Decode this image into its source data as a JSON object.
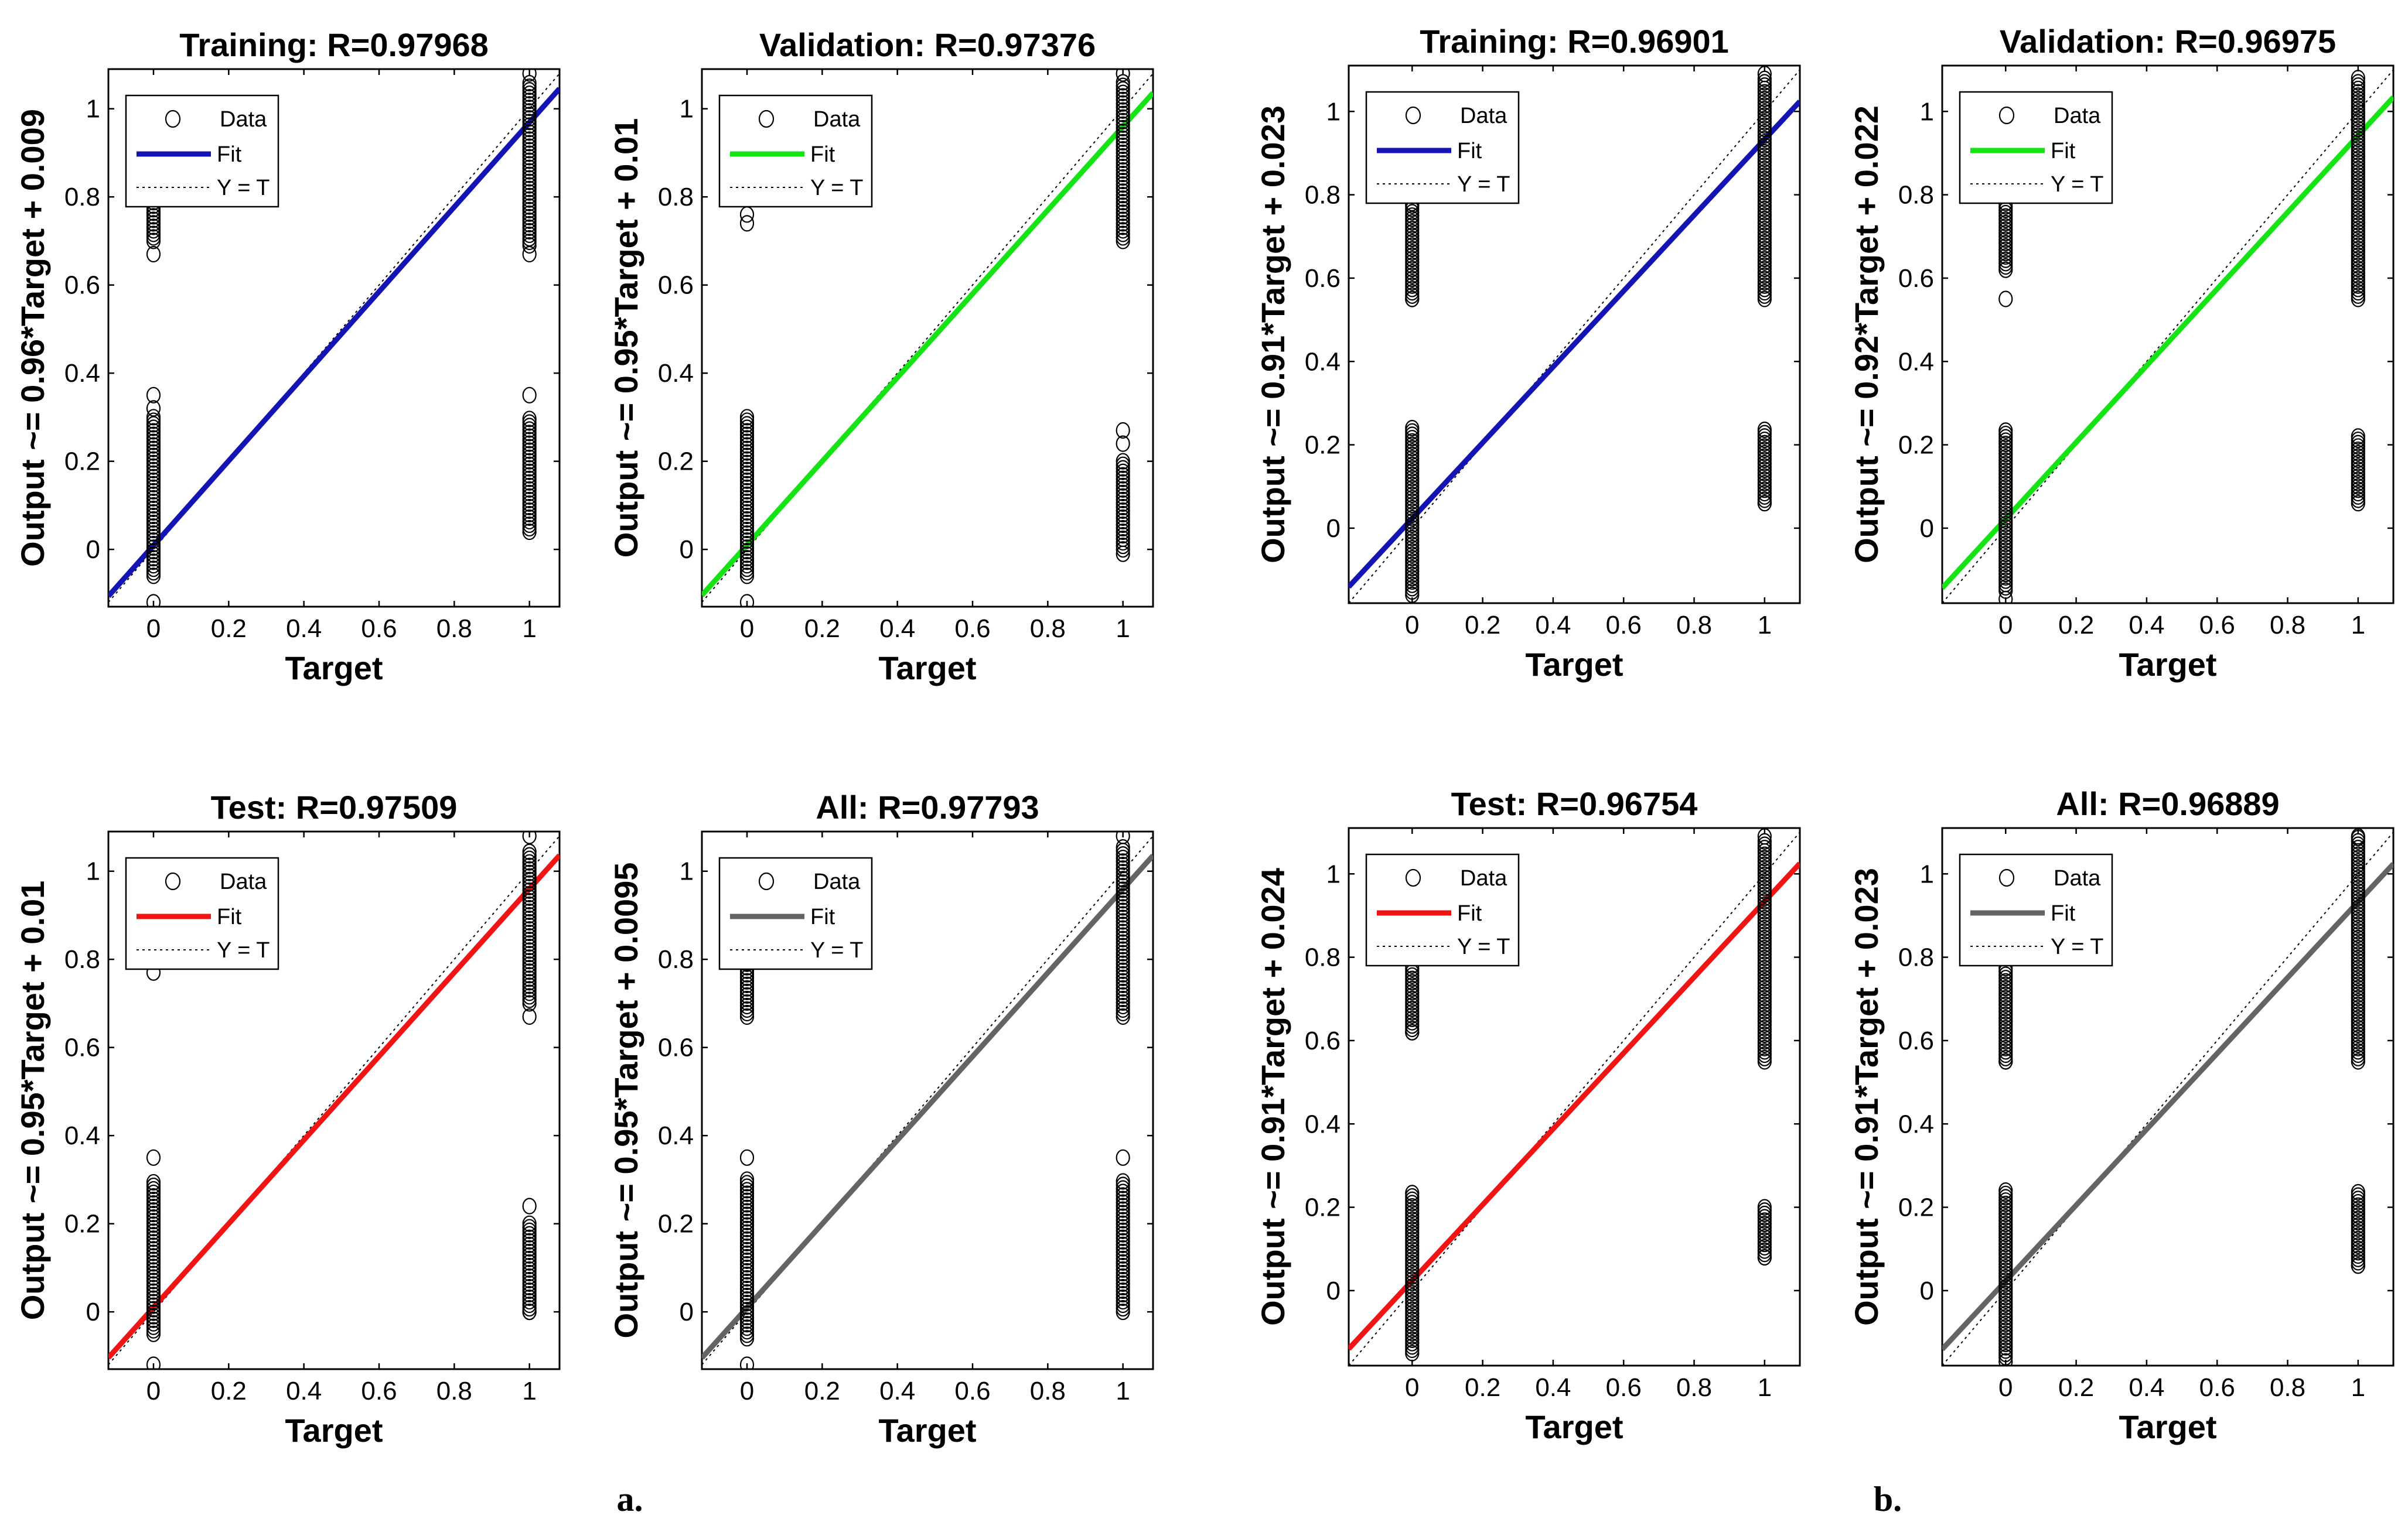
{
  "figure": {
    "panel_labels": [
      "a.",
      "b."
    ],
    "legend": {
      "data": "Data",
      "fit": "Fit",
      "identity": "Y = T"
    },
    "colors": {
      "training": "#1414b4",
      "validation": "#14e414",
      "test": "#f01414",
      "all": "#646464"
    }
  },
  "chart_data": [
    {
      "type": "scatter",
      "group": "a.",
      "title": "Training: R=0.97968",
      "xlabel": "Target",
      "ylabel": "Output ~= 0.96*Target + 0.009",
      "xlim": [
        -0.12,
        1.08
      ],
      "ylim": [
        -0.13,
        1.09
      ],
      "xticks": [
        0,
        0.2,
        0.4,
        0.6,
        0.8,
        1
      ],
      "yticks": [
        0,
        0.2,
        0.4,
        0.6,
        0.8,
        1
      ],
      "fit": {
        "slope": 0.96,
        "intercept": 0.009,
        "color": "training"
      },
      "clusters": [
        {
          "x": 0,
          "ymin": -0.06,
          "ymax": 0.3
        },
        {
          "x": 0,
          "ymin": 0.7,
          "ymax": 0.79
        },
        {
          "x": 1,
          "ymin": 0.69,
          "ymax": 1.06
        },
        {
          "x": 1,
          "ymin": 0.04,
          "ymax": 0.3
        }
      ],
      "points": [
        [
          0,
          -0.12
        ],
        [
          0,
          0.35
        ],
        [
          0,
          0.32
        ],
        [
          0,
          0.67
        ],
        [
          1,
          1.08
        ],
        [
          1,
          0.67
        ],
        [
          1,
          0.35
        ]
      ]
    },
    {
      "type": "scatter",
      "group": "a.",
      "title": "Validation: R=0.97376",
      "xlabel": "Target",
      "ylabel": "Output ~= 0.95*Target + 0.01",
      "xlim": [
        -0.12,
        1.08
      ],
      "ylim": [
        -0.13,
        1.09
      ],
      "xticks": [
        0,
        0.2,
        0.4,
        0.6,
        0.8,
        1
      ],
      "yticks": [
        0,
        0.2,
        0.4,
        0.6,
        0.8,
        1
      ],
      "fit": {
        "slope": 0.95,
        "intercept": 0.01,
        "color": "validation"
      },
      "clusters": [
        {
          "x": 0,
          "ymin": -0.06,
          "ymax": 0.3
        },
        {
          "x": 1,
          "ymin": 0.7,
          "ymax": 1.06
        },
        {
          "x": 1,
          "ymin": 0.0,
          "ymax": 0.2
        }
      ],
      "points": [
        [
          0,
          -0.12
        ],
        [
          0,
          0.74
        ],
        [
          0,
          0.76
        ],
        [
          1,
          1.08
        ],
        [
          1,
          0.27
        ],
        [
          1,
          0.24
        ],
        [
          1,
          -0.01
        ]
      ]
    },
    {
      "type": "scatter",
      "group": "b.",
      "title": "Training: R=0.96901",
      "xlabel": "Target",
      "ylabel": "Output ~= 0.91*Target + 0.023",
      "xlim": [
        -0.18,
        1.1
      ],
      "ylim": [
        -0.18,
        1.11
      ],
      "xticks": [
        0,
        0.2,
        0.4,
        0.6,
        0.8,
        1
      ],
      "yticks": [
        0,
        0.2,
        0.4,
        0.6,
        0.8,
        1
      ],
      "fit": {
        "slope": 0.91,
        "intercept": 0.023,
        "color": "training"
      },
      "clusters": [
        {
          "x": 0,
          "ymin": -0.16,
          "ymax": 0.24
        },
        {
          "x": 0,
          "ymin": 0.55,
          "ymax": 0.78
        },
        {
          "x": 1,
          "ymin": 0.55,
          "ymax": 1.08
        },
        {
          "x": 1,
          "ymin": 0.06,
          "ymax": 0.24
        }
      ],
      "points": [
        [
          0,
          0.55
        ],
        [
          0,
          0.78
        ],
        [
          1,
          1.09
        ],
        [
          1,
          0.06
        ]
      ]
    },
    {
      "type": "scatter",
      "group": "b.",
      "title": "Validation: R=0.96975",
      "xlabel": "Target",
      "ylabel": "Output ~= 0.92*Target + 0.022",
      "xlim": [
        -0.18,
        1.1
      ],
      "ylim": [
        -0.18,
        1.11
      ],
      "xticks": [
        0,
        0.2,
        0.4,
        0.6,
        0.8,
        1
      ],
      "yticks": [
        0,
        0.2,
        0.4,
        0.6,
        0.8,
        1
      ],
      "fit": {
        "slope": 0.92,
        "intercept": 0.022,
        "color": "validation"
      },
      "clusters": [
        {
          "x": 0,
          "ymin": -0.15,
          "ymax": 0.24
        },
        {
          "x": 0,
          "ymin": 0.62,
          "ymax": 0.78
        },
        {
          "x": 1,
          "ymin": 0.55,
          "ymax": 1.07
        },
        {
          "x": 1,
          "ymin": 0.06,
          "ymax": 0.22
        }
      ],
      "points": [
        [
          0,
          0.55
        ],
        [
          0,
          -0.17
        ],
        [
          1,
          1.08
        ]
      ]
    },
    {
      "type": "scatter",
      "group": "a.",
      "title": "Test: R=0.97509",
      "xlabel": "Target",
      "ylabel": "Output ~= 0.95*Target + 0.01",
      "xlim": [
        -0.12,
        1.08
      ],
      "ylim": [
        -0.13,
        1.09
      ],
      "xticks": [
        0,
        0.2,
        0.4,
        0.6,
        0.8,
        1
      ],
      "yticks": [
        0,
        0.2,
        0.4,
        0.6,
        0.8,
        1
      ],
      "fit": {
        "slope": 0.95,
        "intercept": 0.01,
        "color": "test"
      },
      "clusters": [
        {
          "x": 0,
          "ymin": -0.05,
          "ymax": 0.3
        },
        {
          "x": 1,
          "ymin": 0.7,
          "ymax": 1.05
        },
        {
          "x": 1,
          "ymin": 0.0,
          "ymax": 0.2
        }
      ],
      "points": [
        [
          0,
          -0.12
        ],
        [
          0,
          0.35
        ],
        [
          0,
          0.77
        ],
        [
          1,
          1.08
        ],
        [
          1,
          0.67
        ],
        [
          1,
          0.24
        ],
        [
          1,
          0.0
        ]
      ]
    },
    {
      "type": "scatter",
      "group": "a.",
      "title": "All: R=0.97793",
      "xlabel": "Target",
      "ylabel": "Output ~= 0.95*Target + 0.0095",
      "xlim": [
        -0.12,
        1.08
      ],
      "ylim": [
        -0.13,
        1.09
      ],
      "xticks": [
        0,
        0.2,
        0.4,
        0.6,
        0.8,
        1
      ],
      "yticks": [
        0,
        0.2,
        0.4,
        0.6,
        0.8,
        1
      ],
      "fit": {
        "slope": 0.95,
        "intercept": 0.0095,
        "color": "all"
      },
      "clusters": [
        {
          "x": 0,
          "ymin": -0.06,
          "ymax": 0.3
        },
        {
          "x": 0,
          "ymin": 0.67,
          "ymax": 0.79
        },
        {
          "x": 1,
          "ymin": 0.67,
          "ymax": 1.06
        },
        {
          "x": 1,
          "ymin": 0.0,
          "ymax": 0.3
        }
      ],
      "points": [
        [
          0,
          -0.12
        ],
        [
          0,
          0.35
        ],
        [
          1,
          1.08
        ],
        [
          1,
          0.35
        ]
      ]
    },
    {
      "type": "scatter",
      "group": "b.",
      "title": "Test: R=0.96754",
      "xlabel": "Target",
      "ylabel": "Output ~= 0.91*Target + 0.024",
      "xlim": [
        -0.18,
        1.1
      ],
      "ylim": [
        -0.18,
        1.11
      ],
      "xticks": [
        0,
        0.2,
        0.4,
        0.6,
        0.8,
        1
      ],
      "yticks": [
        0,
        0.2,
        0.4,
        0.6,
        0.8,
        1
      ],
      "fit": {
        "slope": 0.91,
        "intercept": 0.024,
        "color": "test"
      },
      "clusters": [
        {
          "x": 0,
          "ymin": -0.15,
          "ymax": 0.24
        },
        {
          "x": 0,
          "ymin": 0.62,
          "ymax": 0.78
        },
        {
          "x": 1,
          "ymin": 0.55,
          "ymax": 1.08
        },
        {
          "x": 1,
          "ymin": 0.08,
          "ymax": 0.2
        }
      ],
      "points": [
        [
          0,
          0.62
        ],
        [
          1,
          1.09
        ],
        [
          1,
          0.08
        ]
      ]
    },
    {
      "type": "scatter",
      "group": "b.",
      "title": "All: R=0.96889",
      "xlabel": "Target",
      "ylabel": "Output ~= 0.91*Target + 0.023",
      "xlim": [
        -0.18,
        1.1
      ],
      "ylim": [
        -0.18,
        1.11
      ],
      "xticks": [
        0,
        0.2,
        0.4,
        0.6,
        0.8,
        1
      ],
      "yticks": [
        0,
        0.2,
        0.4,
        0.6,
        0.8,
        1
      ],
      "fit": {
        "slope": 0.91,
        "intercept": 0.023,
        "color": "all"
      },
      "clusters": [
        {
          "x": 0,
          "ymin": -0.16,
          "ymax": 0.24
        },
        {
          "x": 0,
          "ymin": 0.55,
          "ymax": 0.78
        },
        {
          "x": 1,
          "ymin": 0.55,
          "ymax": 1.09
        },
        {
          "x": 1,
          "ymin": 0.06,
          "ymax": 0.24
        }
      ],
      "points": [
        [
          0,
          -0.17
        ],
        [
          0,
          0.55
        ],
        [
          1,
          1.09
        ],
        [
          1,
          0.06
        ]
      ]
    }
  ]
}
